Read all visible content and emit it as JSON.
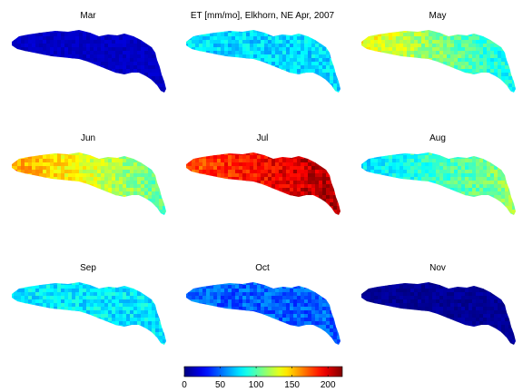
{
  "chart_data": {
    "type": "heatmap",
    "panels": [
      {
        "title": "Mar",
        "level": 15,
        "pattern": "uniform"
      },
      {
        "title": "ET [mm/mo], Elkhorn, NE Apr, 2007",
        "level": 75,
        "pattern": "uniform"
      },
      {
        "title": "May",
        "level": 110,
        "pattern": "west-high"
      },
      {
        "title": "Jun",
        "level": 130,
        "pattern": "west-high"
      },
      {
        "title": "Jul",
        "level": 195,
        "pattern": "east-high"
      },
      {
        "title": "Aug",
        "level": 95,
        "pattern": "west-low"
      },
      {
        "title": "Sep",
        "level": 78,
        "pattern": "uniform"
      },
      {
        "title": "Oct",
        "level": 48,
        "pattern": "uniform"
      },
      {
        "title": "Nov",
        "level": 5,
        "pattern": "uniform"
      }
    ],
    "colorbar": {
      "colormap": "jet",
      "clim": [
        0,
        220
      ],
      "ticks": [
        0,
        50,
        100,
        150,
        200
      ],
      "tick_labels": [
        "0",
        "50",
        "100",
        "150",
        "200"
      ]
    }
  }
}
